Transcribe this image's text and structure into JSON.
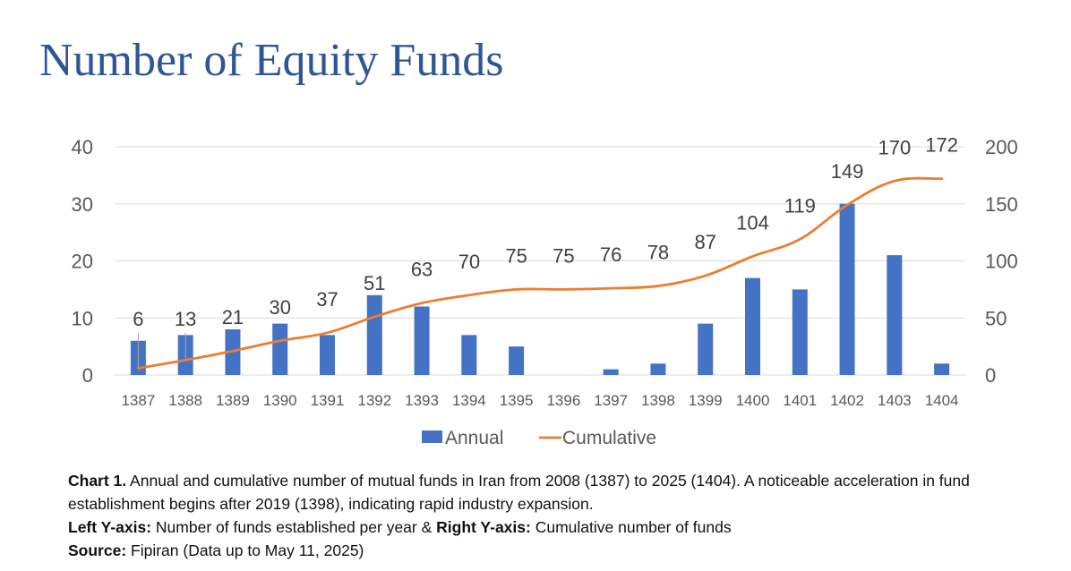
{
  "title": "Number of Equity Funds",
  "colors": {
    "title": "#2F5597",
    "bar": "#4472C4",
    "line": "#ED7D31",
    "grid": "#D9D9D9",
    "axis_text": "#595959",
    "data_label": "#404040"
  },
  "chart_data": {
    "type": "bar",
    "categories": [
      "1387",
      "1388",
      "1389",
      "1390",
      "1391",
      "1392",
      "1393",
      "1394",
      "1395",
      "1396",
      "1397",
      "1398",
      "1399",
      "1400",
      "1401",
      "1402",
      "1403",
      "1404"
    ],
    "series": [
      {
        "name": "Annual",
        "type": "bar",
        "axis": "left",
        "values": [
          6,
          7,
          8,
          9,
          7,
          14,
          12,
          7,
          5,
          0,
          1,
          2,
          9,
          17,
          15,
          30,
          21,
          2
        ]
      },
      {
        "name": "Cumulative",
        "type": "line",
        "axis": "right",
        "smooth": true,
        "values": [
          6,
          13,
          21,
          30,
          37,
          51,
          63,
          70,
          75,
          75,
          76,
          78,
          87,
          104,
          119,
          149,
          170,
          172
        ],
        "data_labels": [
          "6",
          "13",
          "21",
          "30",
          "37",
          "51",
          "63",
          "70",
          "75",
          "75",
          "76",
          "78",
          "87",
          "104",
          "119",
          "149",
          "170",
          "172"
        ]
      }
    ],
    "left_axis": {
      "ylim": [
        0,
        40
      ],
      "ticks": [
        "0",
        "10",
        "20",
        "30",
        "40"
      ]
    },
    "right_axis": {
      "ylim": [
        0,
        200
      ],
      "ticks": [
        "0",
        "50",
        "100",
        "150",
        "200"
      ]
    },
    "grid": true,
    "legend_position": "bottom"
  },
  "caption": {
    "line1_bold": "Chart 1.",
    "line1_text": " Annual and cumulative number of mutual funds in Iran from 2008 (1387) to 2025 (1404). A noticeable acceleration in fund establishment begins after 2019 (1398), indicating rapid industry expansion.",
    "left_axis_bold": "Left Y-axis:",
    "left_axis_text": " Number of funds established per year ",
    "amp": "&",
    "right_axis_bold": " Right Y-axis:",
    "right_axis_text": " Cumulative number of funds",
    "source_bold": "Source:",
    "source_text": " Fipiran (Data up to May 11, 2025)"
  }
}
